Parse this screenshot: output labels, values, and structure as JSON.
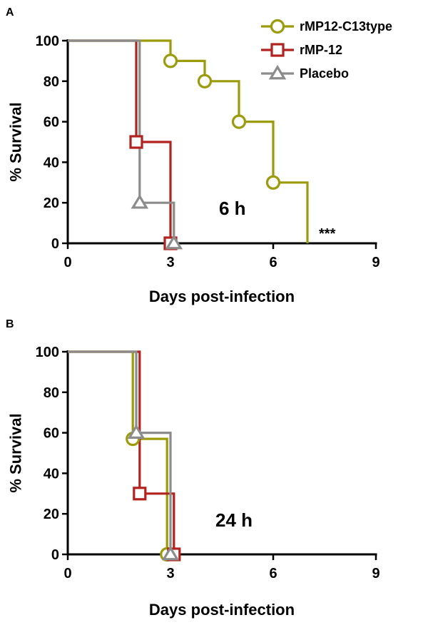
{
  "chart_data": [
    {
      "type": "line",
      "panel": "A",
      "annotation": "6 h",
      "significance": "***",
      "xlabel": "Days post-infection",
      "ylabel": "% Survival",
      "xlim": [
        0,
        9
      ],
      "ylim": [
        0,
        100
      ],
      "xticks": [
        "0",
        "3",
        "6",
        "9"
      ],
      "yticks": [
        "0",
        "20",
        "40",
        "60",
        "80",
        "100"
      ],
      "legend_position": "top-right",
      "series": [
        {
          "name": "rMP12-C13type",
          "color": "#9b9b0b",
          "marker": "circle",
          "steps": [
            [
              0,
              100
            ],
            [
              3,
              90
            ],
            [
              4,
              80
            ],
            [
              5,
              60
            ],
            [
              6,
              30
            ],
            [
              7,
              0
            ]
          ],
          "markers": [
            [
              3,
              90
            ],
            [
              4,
              80
            ],
            [
              5,
              60
            ],
            [
              6,
              30
            ]
          ]
        },
        {
          "name": "rMP-12",
          "color": "#b2221f",
          "marker": "square",
          "steps": [
            [
              0,
              100
            ],
            [
              2,
              50
            ],
            [
              3,
              0
            ]
          ],
          "markers": [
            [
              2,
              50
            ],
            [
              3,
              0
            ]
          ]
        },
        {
          "name": "Placebo",
          "color": "#8c8c8c",
          "marker": "triangle",
          "steps": [
            [
              0,
              100
            ],
            [
              2.1,
              20
            ],
            [
              3.1,
              0
            ]
          ],
          "markers": [
            [
              2.1,
              20
            ],
            [
              3.1,
              0
            ]
          ]
        }
      ]
    },
    {
      "type": "line",
      "panel": "B",
      "annotation": "24 h",
      "xlabel": "Days post-infection",
      "ylabel": "% Survival",
      "xlim": [
        0,
        9
      ],
      "ylim": [
        0,
        100
      ],
      "xticks": [
        "0",
        "3",
        "6",
        "9"
      ],
      "yticks": [
        "0",
        "20",
        "40",
        "60",
        "80",
        "100"
      ],
      "series": [
        {
          "name": "rMP12-C13type",
          "color": "#9b9b0b",
          "marker": "circle",
          "steps": [
            [
              0,
              100
            ],
            [
              1.9,
              57
            ],
            [
              2.9,
              0
            ]
          ],
          "markers": [
            [
              1.9,
              57
            ],
            [
              2.9,
              0
            ]
          ]
        },
        {
          "name": "rMP-12",
          "color": "#b2221f",
          "marker": "square",
          "steps": [
            [
              0,
              100
            ],
            [
              2.1,
              30
            ],
            [
              3.1,
              0
            ]
          ],
          "markers": [
            [
              2.1,
              30
            ],
            [
              3.1,
              0
            ]
          ]
        },
        {
          "name": "Placebo",
          "color": "#8c8c8c",
          "marker": "triangle",
          "steps": [
            [
              0,
              100
            ],
            [
              2,
              60
            ],
            [
              3,
              0
            ]
          ],
          "markers": [
            [
              2,
              60
            ],
            [
              3,
              0
            ]
          ]
        }
      ]
    }
  ]
}
